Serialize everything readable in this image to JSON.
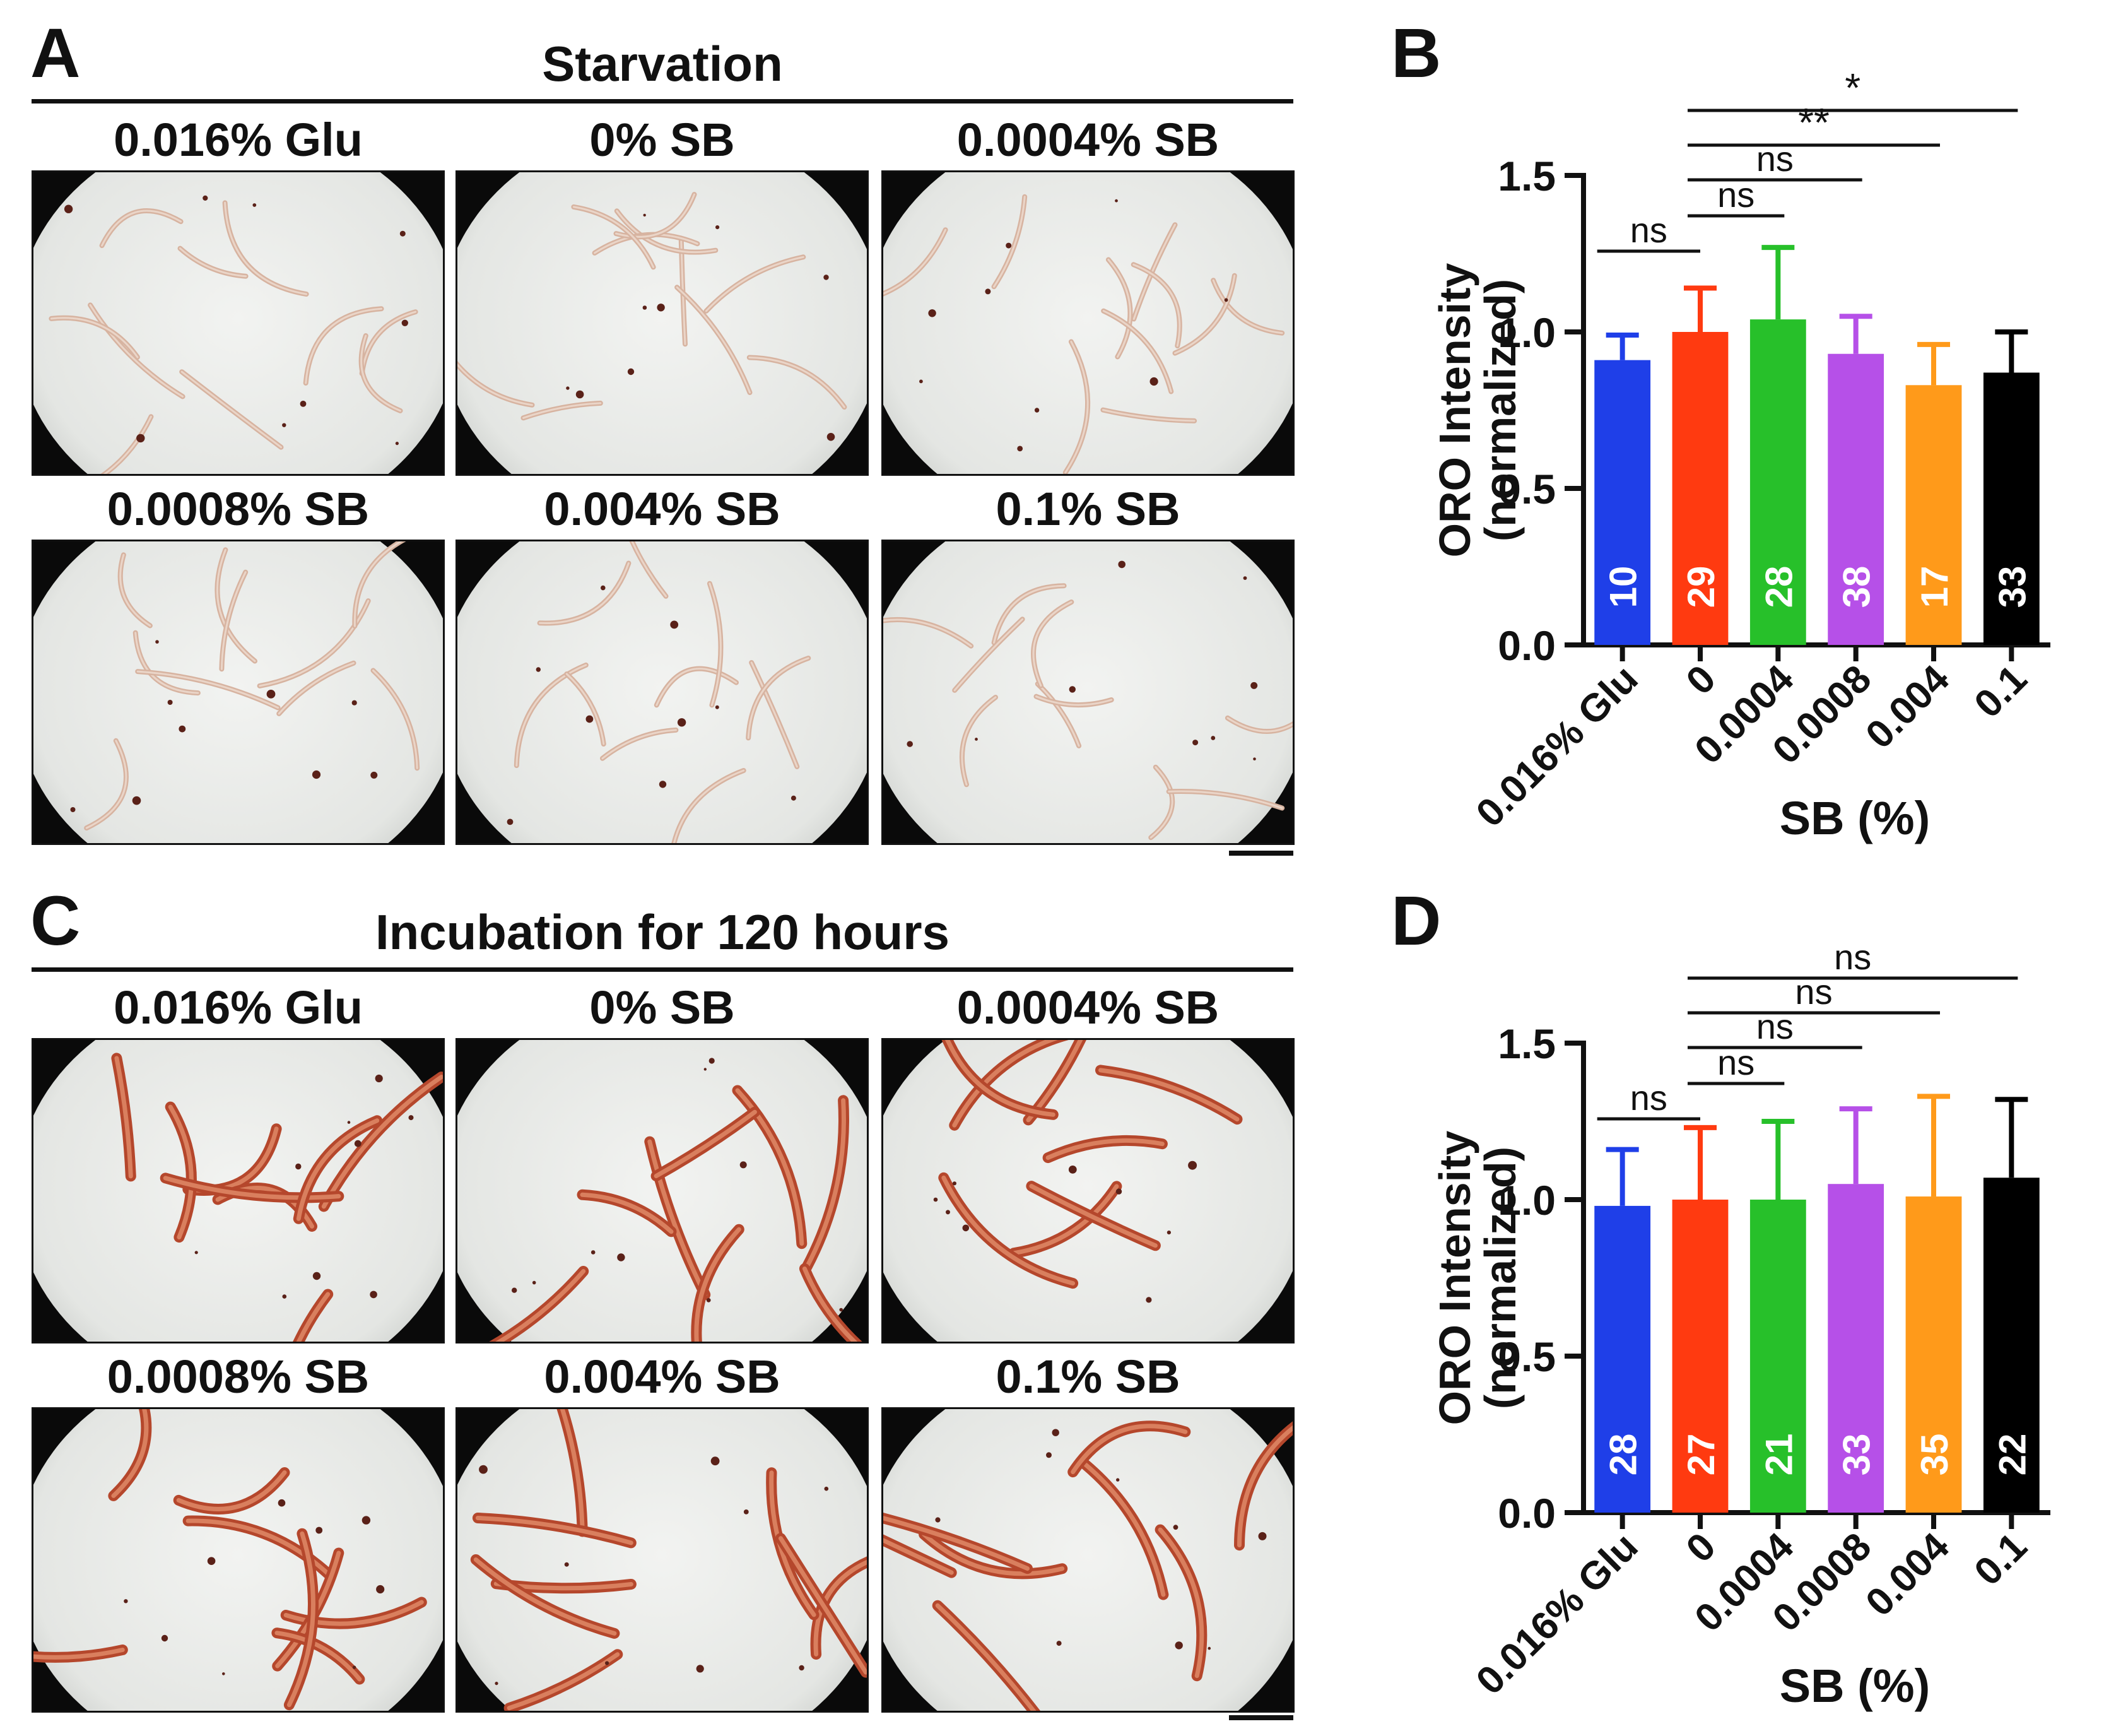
{
  "figure": {
    "panel_a": {
      "letter": "A",
      "title": "Starvation",
      "images": [
        {
          "label": "0.016% Glu",
          "stain": "light",
          "seed": 3
        },
        {
          "label": "0% SB",
          "stain": "light",
          "seed": 7
        },
        {
          "label": "0.0004% SB",
          "stain": "light",
          "seed": 11
        },
        {
          "label": "0.0008% SB",
          "stain": "light",
          "seed": 17
        },
        {
          "label": "0.004% SB",
          "stain": "light",
          "seed": 23
        },
        {
          "label": "0.1% SB",
          "stain": "light",
          "seed": 29
        }
      ]
    },
    "panel_c": {
      "letter": "C",
      "title": "Incubation for 120 hours",
      "images": [
        {
          "label": "0.016% Glu",
          "stain": "dark",
          "seed": 31
        },
        {
          "label": "0% SB",
          "stain": "dark",
          "seed": 37
        },
        {
          "label": "0.0004% SB",
          "stain": "dark",
          "seed": 41
        },
        {
          "label": "0.0008% SB",
          "stain": "dark",
          "seed": 43
        },
        {
          "label": "0.004% SB",
          "stain": "dark",
          "seed": 47
        },
        {
          "label": "0.1% SB",
          "stain": "dark",
          "seed": 53
        }
      ]
    }
  },
  "chart_data": [
    {
      "panel": "B",
      "type": "bar",
      "ylabel_line1": "ORO Intensity",
      "ylabel_line2": "(normalized)",
      "xlabel": "SB (%)",
      "ylim": [
        0,
        1.5
      ],
      "yticks": [
        0.0,
        0.5,
        1.0,
        1.5
      ],
      "ytick_labels": [
        "0.0",
        "0.5",
        "1.0",
        "1.5"
      ],
      "categories": [
        "0.016% Glu",
        "0",
        "0.0004",
        "0.0008",
        "0.004",
        "0.1"
      ],
      "values": [
        0.91,
        1.0,
        1.04,
        0.93,
        0.83,
        0.87
      ],
      "errors": [
        0.08,
        0.14,
        0.23,
        0.12,
        0.13,
        0.13
      ],
      "n": [
        "10",
        "29",
        "28",
        "38",
        "17",
        "33"
      ],
      "colors": [
        "#1f3fe8",
        "#ff3a10",
        "#27c02a",
        "#b650e8",
        "#ff9a1a",
        "#000000"
      ],
      "comparisons": [
        {
          "from": 0,
          "to": 1,
          "label": "ns"
        },
        {
          "from": 1,
          "to": 2,
          "label": "ns"
        },
        {
          "from": 1,
          "to": 3,
          "label": "ns"
        },
        {
          "from": 1,
          "to": 4,
          "label": "**"
        },
        {
          "from": 1,
          "to": 5,
          "label": "*"
        }
      ]
    },
    {
      "panel": "D",
      "type": "bar",
      "ylabel_line1": "ORO Intensity",
      "ylabel_line2": "(normalized)",
      "xlabel": "SB (%)",
      "ylim": [
        0,
        1.5
      ],
      "yticks": [
        0.0,
        0.5,
        1.0,
        1.5
      ],
      "ytick_labels": [
        "0.0",
        "0.5",
        "1.0",
        "1.5"
      ],
      "categories": [
        "0.016% Glu",
        "0",
        "0.0004",
        "0.0008",
        "0.004",
        "0.1"
      ],
      "values": [
        0.98,
        1.0,
        1.0,
        1.05,
        1.01,
        1.07
      ],
      "errors": [
        0.18,
        0.23,
        0.25,
        0.24,
        0.32,
        0.25
      ],
      "n": [
        "28",
        "27",
        "21",
        "33",
        "35",
        "22"
      ],
      "colors": [
        "#1f3fe8",
        "#ff3a10",
        "#27c02a",
        "#b650e8",
        "#ff9a1a",
        "#000000"
      ],
      "comparisons": [
        {
          "from": 0,
          "to": 1,
          "label": "ns"
        },
        {
          "from": 1,
          "to": 2,
          "label": "ns"
        },
        {
          "from": 1,
          "to": 3,
          "label": "ns"
        },
        {
          "from": 1,
          "to": 4,
          "label": "ns"
        },
        {
          "from": 1,
          "to": 5,
          "label": "ns"
        }
      ]
    }
  ]
}
